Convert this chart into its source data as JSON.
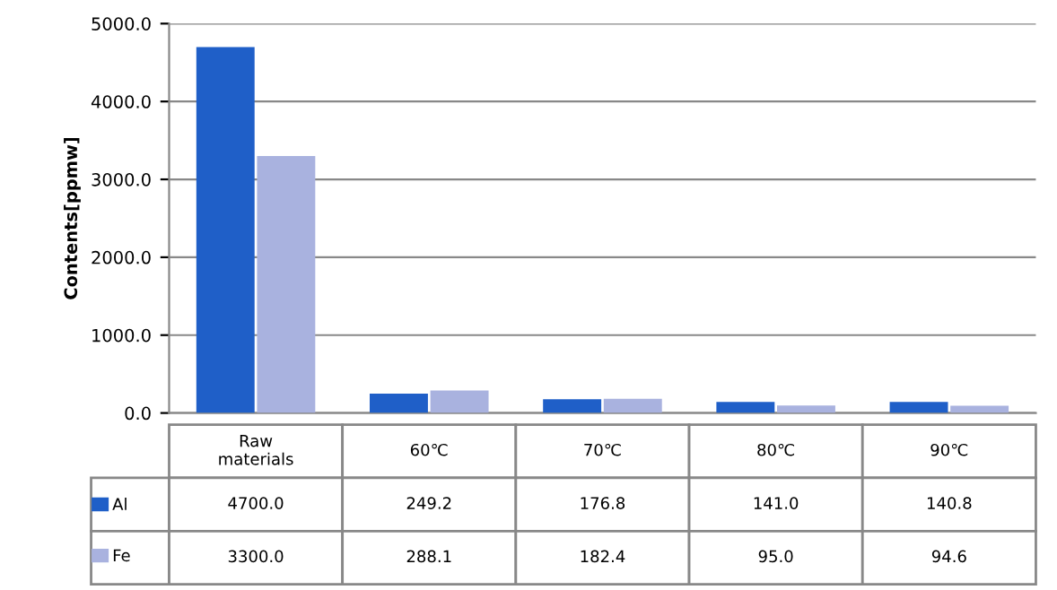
{
  "chart_data": {
    "type": "bar",
    "ylabel": "Contents[ppmw]",
    "categories": [
      "Raw\nmaterials",
      "60℃",
      "70℃",
      "80℃",
      "90℃"
    ],
    "series": [
      {
        "name": "Al",
        "color": "#1f5fc8",
        "values": [
          4700.0,
          249.2,
          176.8,
          141.0,
          140.8
        ],
        "value_labels": [
          "4700.0",
          "249.2",
          "176.8",
          "141.0",
          "140.8"
        ]
      },
      {
        "name": "Fe",
        "color": "#a9b2df",
        "values": [
          3300.0,
          288.1,
          182.4,
          95.0,
          94.6
        ],
        "value_labels": [
          "3300.0",
          "288.1",
          "182.4",
          "95.0",
          "94.6"
        ]
      }
    ],
    "ylim": [
      0,
      5000
    ],
    "yticks": [
      {
        "value": 0,
        "label": "0.0"
      },
      {
        "value": 1000,
        "label": "1000.0"
      },
      {
        "value": 2000,
        "label": "2000.0"
      },
      {
        "value": 3000,
        "label": "3000.0"
      },
      {
        "value": 4000,
        "label": "4000.0"
      },
      {
        "value": 5000,
        "label": "5000.0"
      }
    ],
    "grid": "y",
    "legend": "bottom left"
  }
}
